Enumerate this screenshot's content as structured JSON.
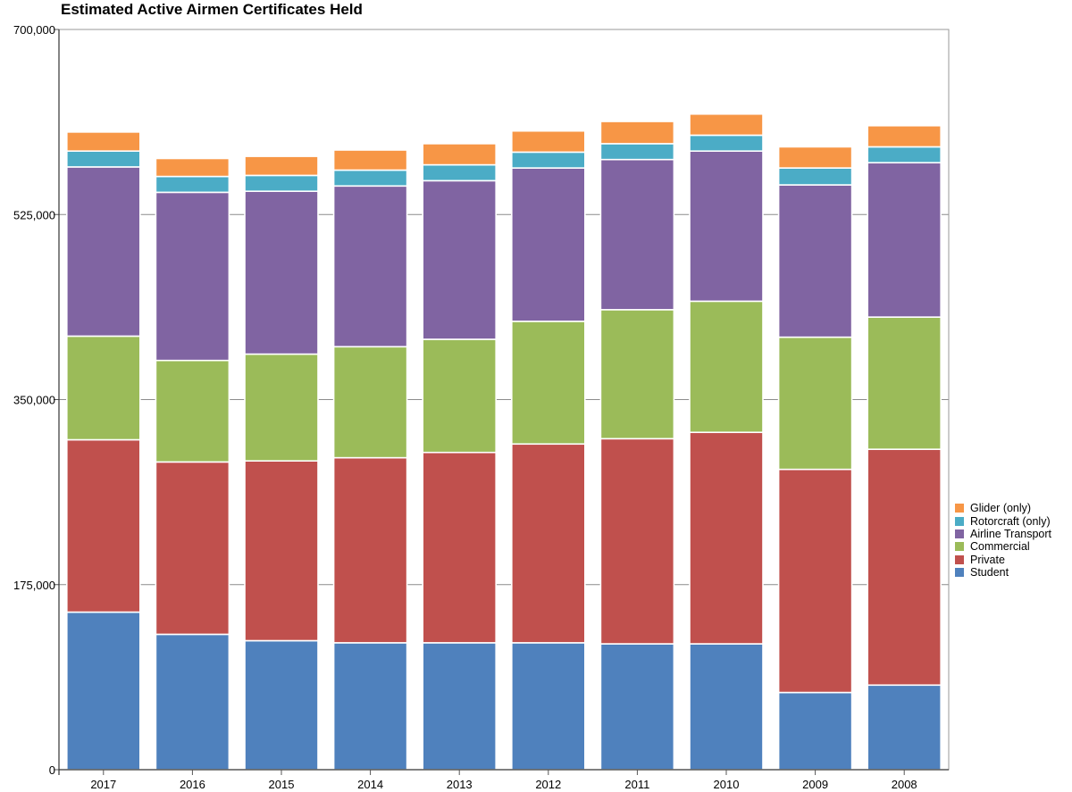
{
  "chart_data": {
    "type": "bar",
    "stacked": true,
    "title": "Estimated Active Airmen Certificates Held",
    "xlabel": "",
    "ylabel": "",
    "ylim": [
      0,
      700000
    ],
    "yticks": [
      0,
      175000,
      350000,
      525000,
      700000
    ],
    "ytick_labels": [
      "0",
      "175,000",
      "350,000",
      "525,000",
      "700,000"
    ],
    "grid": true,
    "legend_position": "right",
    "categories": [
      "2017",
      "2016",
      "2015",
      "2014",
      "2013",
      "2012",
      "2011",
      "2010",
      "2009",
      "2008"
    ],
    "series": [
      {
        "name": "Student",
        "color": "#4f81bd",
        "values": [
          149000,
          128000,
          122000,
          120000,
          120000,
          120000,
          119000,
          119000,
          73000,
          80000
        ]
      },
      {
        "name": "Private",
        "color": "#c0504d",
        "values": [
          163000,
          163000,
          170000,
          175000,
          180000,
          188000,
          194000,
          200000,
          211000,
          223000
        ]
      },
      {
        "name": "Commercial",
        "color": "#9bbb59",
        "values": [
          98000,
          96000,
          101000,
          105000,
          107000,
          116000,
          122000,
          124000,
          125000,
          125000
        ]
      },
      {
        "name": "Airline Transport",
        "color": "#8064a2",
        "values": [
          160000,
          159000,
          154000,
          152000,
          150000,
          145000,
          142000,
          142000,
          144000,
          146000
        ]
      },
      {
        "name": "Rotorcraft (only)",
        "color": "#4bacc6",
        "values": [
          15000,
          15000,
          15000,
          15000,
          15000,
          15000,
          15000,
          15000,
          16000,
          15000
        ]
      },
      {
        "name": "Glider (only)",
        "color": "#f79646",
        "values": [
          18000,
          17000,
          18000,
          19000,
          20000,
          20000,
          21000,
          20000,
          20000,
          20000
        ]
      }
    ]
  }
}
